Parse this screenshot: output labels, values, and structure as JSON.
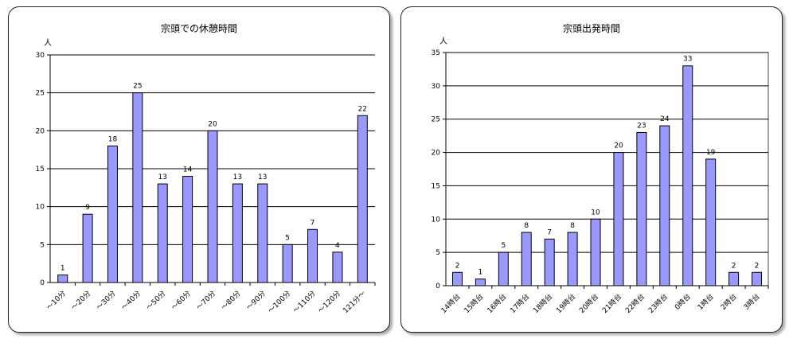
{
  "chart_data": [
    {
      "type": "bar",
      "title": "宗頭での休憩時間",
      "ylabel": "人",
      "ylim": [
        0,
        30
      ],
      "yticks": [
        0,
        5,
        10,
        15,
        20,
        25,
        30
      ],
      "categories": [
        "～10分",
        "～20分",
        "～30分",
        "～40分",
        "～50分",
        "～60分",
        "～70分",
        "～80分",
        "～90分",
        "～100分",
        "～110分",
        "～120分",
        "121分～"
      ],
      "values": [
        1,
        9,
        18,
        25,
        13,
        14,
        20,
        13,
        13,
        5,
        7,
        4,
        22
      ],
      "bar_color": "#9999ff",
      "grid": true,
      "legend": "none"
    },
    {
      "type": "bar",
      "title": "宗頭出発時間",
      "ylabel": "人",
      "ylim": [
        0,
        35
      ],
      "yticks": [
        0,
        5,
        10,
        15,
        20,
        25,
        30,
        35
      ],
      "categories": [
        "14時台",
        "15時台",
        "16時台",
        "17時台",
        "18時台",
        "19時台",
        "20時台",
        "21時台",
        "22時台",
        "23時台",
        "0時台",
        "1時台",
        "2時台",
        "3時台"
      ],
      "values": [
        2,
        1,
        5,
        8,
        7,
        8,
        10,
        20,
        23,
        24,
        33,
        19,
        2,
        2
      ],
      "bar_color": "#9999ff",
      "grid": true,
      "legend": "none"
    }
  ]
}
